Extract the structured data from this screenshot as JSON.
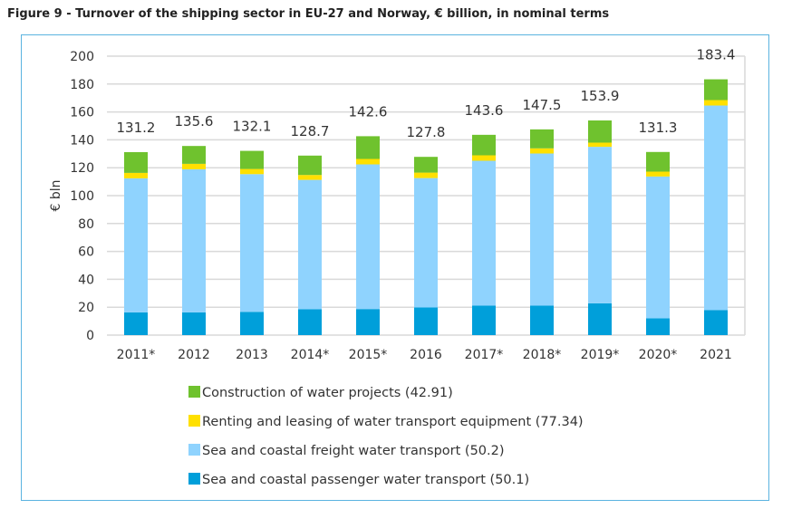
{
  "title": "Figure 9 - Turnover of the shipping sector in EU-27 and Norway, € billion, in nominal terms",
  "chart_data": {
    "type": "bar",
    "stacked": true,
    "title": "Figure 9 - Turnover of the shipping sector in EU-27 and Norway, € billion, in nominal terms",
    "xlabel": "",
    "ylabel": "€ bln",
    "ylim": [
      0,
      200
    ],
    "yticks": [
      0,
      20,
      40,
      60,
      80,
      100,
      120,
      140,
      160,
      180,
      200
    ],
    "grid": true,
    "legend_position": "bottom",
    "categories": [
      "2011*",
      "2012",
      "2013",
      "2014*",
      "2015*",
      "2016",
      "2017*",
      "2018*",
      "2019*",
      "2020*",
      "2021"
    ],
    "totals": [
      131.2,
      135.6,
      132.1,
      128.7,
      142.6,
      127.8,
      143.6,
      147.5,
      153.9,
      131.3,
      183.4
    ],
    "series": [
      {
        "name": "Sea and coastal passenger water transport (50.1)",
        "color": "#009fda",
        "values": [
          16.3,
          16.3,
          16.7,
          18.5,
          18.7,
          19.8,
          21.1,
          21.1,
          22.8,
          12.0,
          18.0
        ]
      },
      {
        "name": "Sea and coastal freight water transport (50.2)",
        "color": "#8fd3fe",
        "values": [
          96.1,
          102.6,
          98.7,
          92.8,
          103.7,
          92.8,
          103.9,
          109.1,
          112.2,
          101.7,
          146.6
        ]
      },
      {
        "name": "Renting and leasing of water transport equipment (77.34)",
        "color": "#ffe000",
        "values": [
          3.9,
          3.9,
          3.7,
          3.5,
          3.9,
          3.9,
          3.9,
          3.7,
          3.0,
          3.5,
          3.9
        ]
      },
      {
        "name": "Construction of water projects (42.91)",
        "color": "#6fc22e",
        "values": [
          14.9,
          12.8,
          13.0,
          13.9,
          16.3,
          11.3,
          14.7,
          13.6,
          15.9,
          14.1,
          14.9
        ]
      }
    ]
  }
}
